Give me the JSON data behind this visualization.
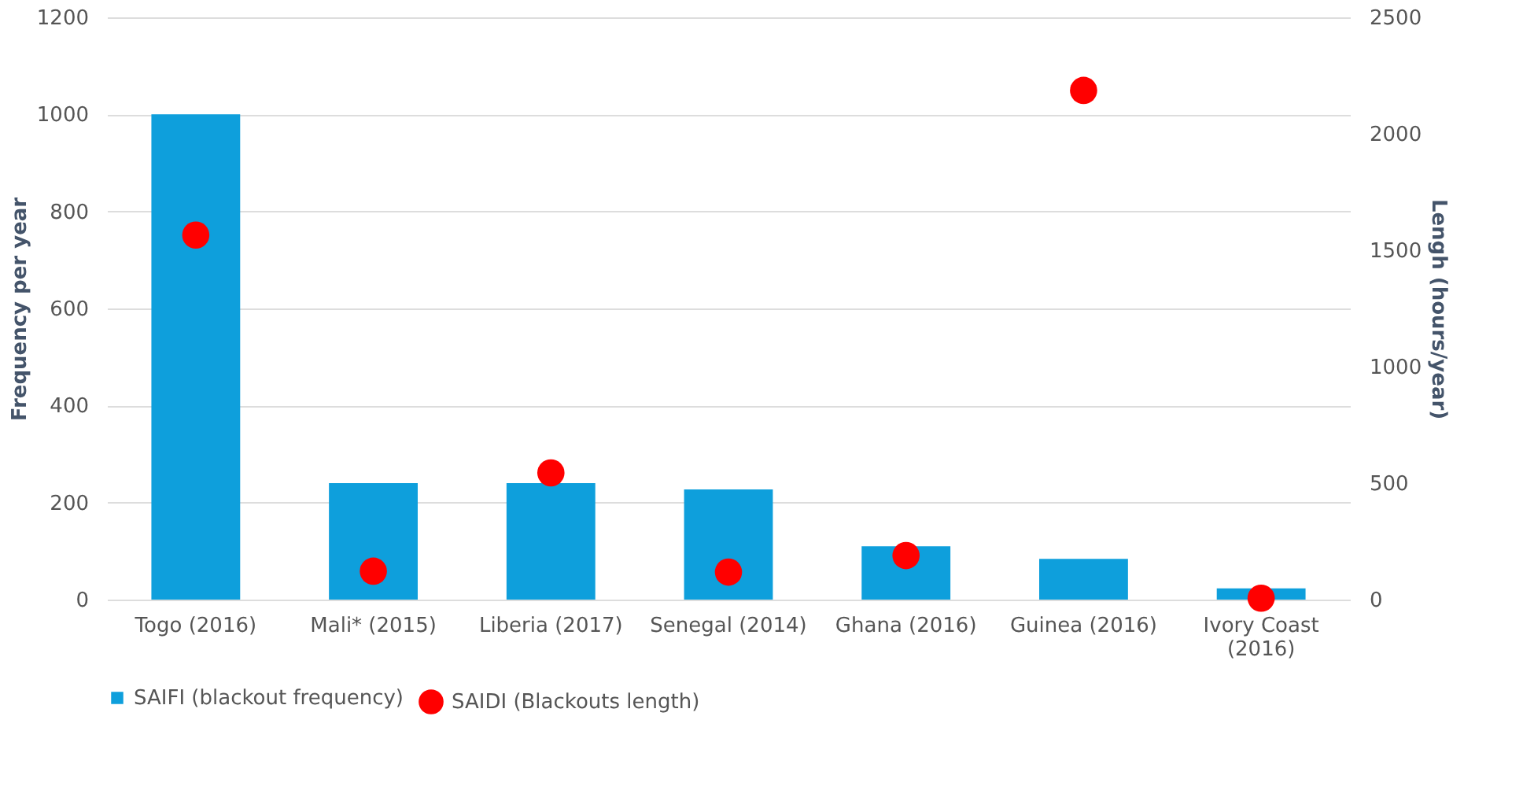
{
  "chart_data": {
    "type": "bar",
    "categories": [
      "Togo (2016)",
      "Mali* (2015)",
      "Liberia (2017)",
      "Senegal (2014)",
      "Ghana (2016)",
      "Guinea (2016)",
      "Ivory Coast (2016)"
    ],
    "series": [
      {
        "name": "SAIFI (blackout frequency)",
        "color": "#0e9fdc",
        "values": [
          1000,
          240,
          240,
          227,
          110,
          84,
          23
        ]
      },
      {
        "name": "SAIDI (Blackouts length)",
        "type": "scatter",
        "axis": "y2",
        "marker": "circle",
        "color": "#ff0000",
        "values": [
          1565,
          122,
          544,
          118,
          189,
          2186,
          6
        ]
      }
    ],
    "ylabel": "Frequency per year",
    "y2label": "Lengh (hours/year)",
    "ylim": [
      0,
      1200
    ],
    "yticks": [
      0,
      200,
      400,
      600,
      800,
      1000,
      1200
    ],
    "y2lim": [
      0,
      2500
    ],
    "y2ticks": [
      0,
      500,
      1000,
      1500,
      2000,
      2500
    ],
    "grid": "y",
    "legend": "bottom"
  }
}
